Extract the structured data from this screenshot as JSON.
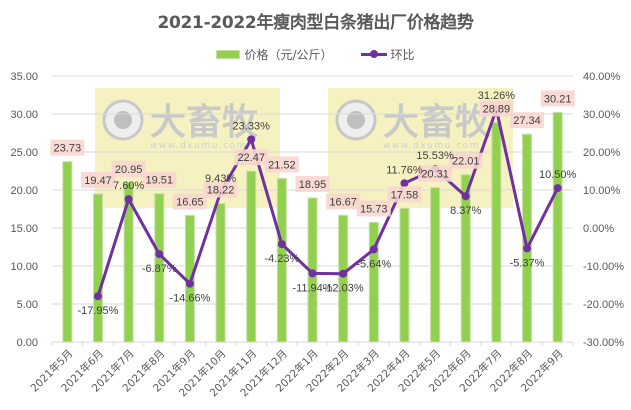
{
  "title": "2021-2022年瘦肉型白条猪出厂价格趋势",
  "legend": {
    "bar_label": "价格（元/公斤）",
    "line_label": "环比"
  },
  "watermark": {
    "text": "大畜牧",
    "url_text": "www.dxumu.com"
  },
  "colors": {
    "bar": "#92d050",
    "bar_border": "#c5e0a5",
    "line": "#7030a0",
    "label_bg": "#f8d6cf",
    "watermark_bg": "#f5eeb5",
    "grid": "#d9d9d9",
    "text": "#595959"
  },
  "chart_data": {
    "type": "bar+line",
    "title": "2021-2022年瘦肉型白条猪出厂价格趋势",
    "categories": [
      "2021年5月",
      "2021年6月",
      "2021年7月",
      "2021年8月",
      "2021年9月",
      "2021年10月",
      "2021年11月",
      "2021年12月",
      "2022年1月",
      "2022年2月",
      "2022年3月",
      "2022年4月",
      "2022年5月",
      "2022年6月",
      "2022年7月",
      "2022年8月",
      "2022年9月"
    ],
    "series": [
      {
        "name": "价格（元/公斤）",
        "type": "bar",
        "axis": "left",
        "values": [
          23.73,
          19.47,
          20.95,
          19.51,
          16.65,
          18.22,
          22.47,
          21.52,
          18.95,
          16.67,
          15.73,
          17.58,
          20.31,
          22.01,
          28.89,
          27.34,
          30.21
        ],
        "labels": [
          "23.73",
          "19.47",
          "20.95",
          "19.51",
          "16.65",
          "18.22",
          "22.47",
          "21.52",
          "18.95",
          "16.67",
          "15.73",
          "17.58",
          "20.31",
          "22.01",
          "28.89",
          "27.34",
          "30.21"
        ]
      },
      {
        "name": "环比",
        "type": "line",
        "axis": "right",
        "values": [
          null,
          -17.95,
          7.6,
          -6.87,
          -14.66,
          9.43,
          23.33,
          -4.23,
          -11.94,
          -12.03,
          -5.64,
          11.76,
          15.53,
          8.37,
          31.26,
          -5.37,
          10.5
        ],
        "labels": [
          "",
          "-17.95%",
          "7.60%",
          "-6.87%",
          "-14.66%",
          "9.43%",
          "23.33%",
          "-4.23%",
          "-11.94%",
          "-12.03%",
          "-5.64%",
          "11.76%",
          "15.53%",
          "8.37%",
          "31.26%",
          "-5.37%",
          "10.50%"
        ]
      }
    ],
    "left_axis": {
      "min": 0,
      "max": 35,
      "step": 5,
      "ticks": [
        "0.00",
        "5.00",
        "10.00",
        "15.00",
        "20.00",
        "25.00",
        "30.00",
        "35.00"
      ]
    },
    "right_axis": {
      "min": -30,
      "max": 40,
      "step": 10,
      "ticks": [
        "-30.00%",
        "-20.00%",
        "-10.00%",
        "0.00%",
        "10.00%",
        "20.00%",
        "30.00%",
        "40.00%"
      ]
    },
    "xlabel": "",
    "ylabel": "",
    "grid": true,
    "legend_position": "top"
  }
}
